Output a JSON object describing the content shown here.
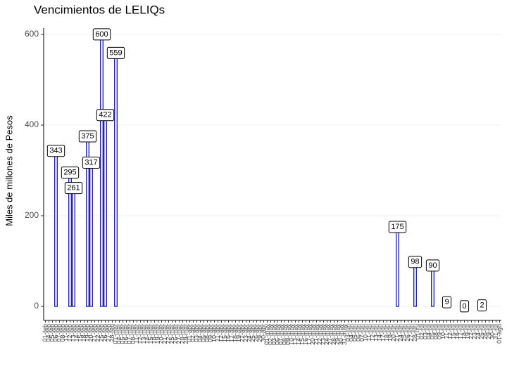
{
  "chart_data": {
    "type": "bar",
    "title": "Vencimientos de LELIQs",
    "ylabel": "Miles de millones de Pesos",
    "color": "#1a1aa0",
    "grid": true,
    "ylim": [
      -31,
      614
    ],
    "yticks": [
      0,
      200,
      400,
      600
    ],
    "categories": [
      "01-feb",
      "04-feb",
      "05-feb",
      "06-feb",
      "07-feb",
      "08-feb",
      "11-feb",
      "12-feb",
      "13-feb",
      "14-feb",
      "15-feb",
      "18-feb",
      "19-feb",
      "20-feb",
      "21-feb",
      "22-feb",
      "25-feb",
      "26-feb",
      "27-feb",
      "28-feb",
      "01-mar",
      "04-mar",
      "05-mar",
      "06-mar",
      "07-mar",
      "08-mar",
      "11-mar",
      "12-mar",
      "13-mar",
      "14-mar",
      "15-mar",
      "18-mar",
      "19-mar",
      "20-mar",
      "21-mar",
      "22-mar",
      "25-mar",
      "26-mar",
      "27-mar",
      "28-mar",
      "29-mar",
      "01-abr",
      "02-abr",
      "03-abr",
      "04-abr",
      "05-abr",
      "08-abr",
      "09-abr",
      "10-abr",
      "11-abr",
      "12-abr",
      "15-abr",
      "16-abr",
      "17-abr",
      "18-abr",
      "19-abr",
      "22-abr",
      "23-abr",
      "24-abr",
      "25-abr",
      "26-abr",
      "29-abr",
      "30-abr",
      "01-may",
      "02-may",
      "03-may",
      "06-may",
      "07-may",
      "08-may",
      "09-may",
      "10-may",
      "13-may",
      "14-may",
      "15-may",
      "16-may",
      "17-may",
      "20-may",
      "21-may",
      "22-may",
      "23-may",
      "24-may",
      "27-may",
      "28-may",
      "29-may",
      "30-may",
      "31-may",
      "03-jun",
      "04-jun",
      "05-jun",
      "06-jun",
      "07-jun",
      "10-jun",
      "11-jun",
      "12-jun",
      "13-jun",
      "14-jun",
      "17-jun",
      "18-jun",
      "19-jun",
      "20-jun",
      "21-jun",
      "24-jun",
      "25-jun",
      "26-jun",
      "27-jun",
      "28-jun",
      "01-jul",
      "02-jul",
      "03-jul",
      "04-jul",
      "05-jul",
      "08-jul",
      "09-jul",
      "10-jul",
      "11-jul",
      "12-jul",
      "15-jul",
      "16-jul",
      "17-jul",
      "18-jul",
      "19-jul",
      "22-jul",
      "23-jul",
      "24-jul",
      "25-jul",
      "26-jul",
      "29-jul",
      "30-jul",
      "31-jul",
      "01-ago"
    ],
    "values": [
      null,
      null,
      null,
      343,
      null,
      null,
      null,
      295,
      261,
      null,
      null,
      null,
      375,
      317,
      null,
      null,
      600,
      422,
      null,
      null,
      559,
      null,
      null,
      null,
      null,
      null,
      null,
      null,
      null,
      null,
      null,
      null,
      null,
      null,
      null,
      null,
      null,
      null,
      null,
      null,
      null,
      null,
      null,
      null,
      null,
      null,
      null,
      null,
      null,
      null,
      null,
      null,
      null,
      null,
      null,
      null,
      null,
      null,
      null,
      null,
      null,
      null,
      null,
      null,
      null,
      null,
      null,
      null,
      null,
      null,
      null,
      null,
      null,
      null,
      null,
      null,
      null,
      null,
      null,
      null,
      null,
      null,
      null,
      null,
      null,
      null,
      null,
      null,
      null,
      null,
      null,
      null,
      null,
      null,
      null,
      null,
      null,
      null,
      null,
      null,
      175,
      null,
      null,
      null,
      null,
      98,
      null,
      null,
      null,
      null,
      90,
      null,
      null,
      null,
      9,
      null,
      null,
      null,
      null,
      0,
      null,
      null,
      null,
      null,
      2,
      null,
      null,
      null,
      null,
      null
    ]
  }
}
